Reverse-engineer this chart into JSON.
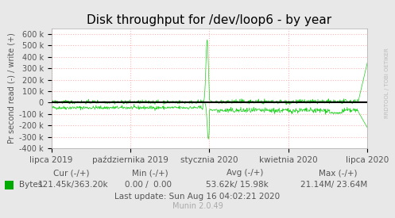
{
  "title": "Disk throughput for /dev/loop6 - by year",
  "ylabel": "Pr second read (-) / write (+)",
  "xlabel_ticks": [
    "lipca 2019",
    "października 2019",
    "stycznia 2020",
    "kwietnia 2020",
    "lipca 2020"
  ],
  "xlabel_tick_positions": [
    0.0,
    0.25,
    0.5,
    0.75,
    1.0
  ],
  "ylim": [
    -400000,
    650000
  ],
  "yticks": [
    -400000,
    -300000,
    -200000,
    -100000,
    0,
    100000,
    200000,
    300000,
    400000,
    500000,
    600000
  ],
  "ytick_labels": [
    "-400 k",
    "-300 k",
    "-200 k",
    "-100 k",
    "0",
    "100 k",
    "200 k",
    "300 k",
    "400 k",
    "500 k",
    "600 k"
  ],
  "bg_color": "#e8e8e8",
  "plot_bg_color": "#ffffff",
  "grid_color": "#ff9999",
  "line_color": "#00cc00",
  "zero_line_color": "#000000",
  "title_color": "#000000",
  "tick_label_color": "#555555",
  "legend_label": "Bytes",
  "legend_color": "#00aa00",
  "cur_neg": "121.45k",
  "cur_pos": "363.20k",
  "min_neg": "0.00",
  "min_pos": "0.00",
  "avg_neg": "53.62k",
  "avg_pos": "15.98k",
  "max_neg": "21.14M",
  "max_pos": "23.64M",
  "last_update": "Last update: Sun Aug 16 04:02:21 2020",
  "munin_version": "Munin 2.0.49",
  "watermark": "RRDTOOL / TOBI OETIKER",
  "font_name": "DejaVu Sans"
}
